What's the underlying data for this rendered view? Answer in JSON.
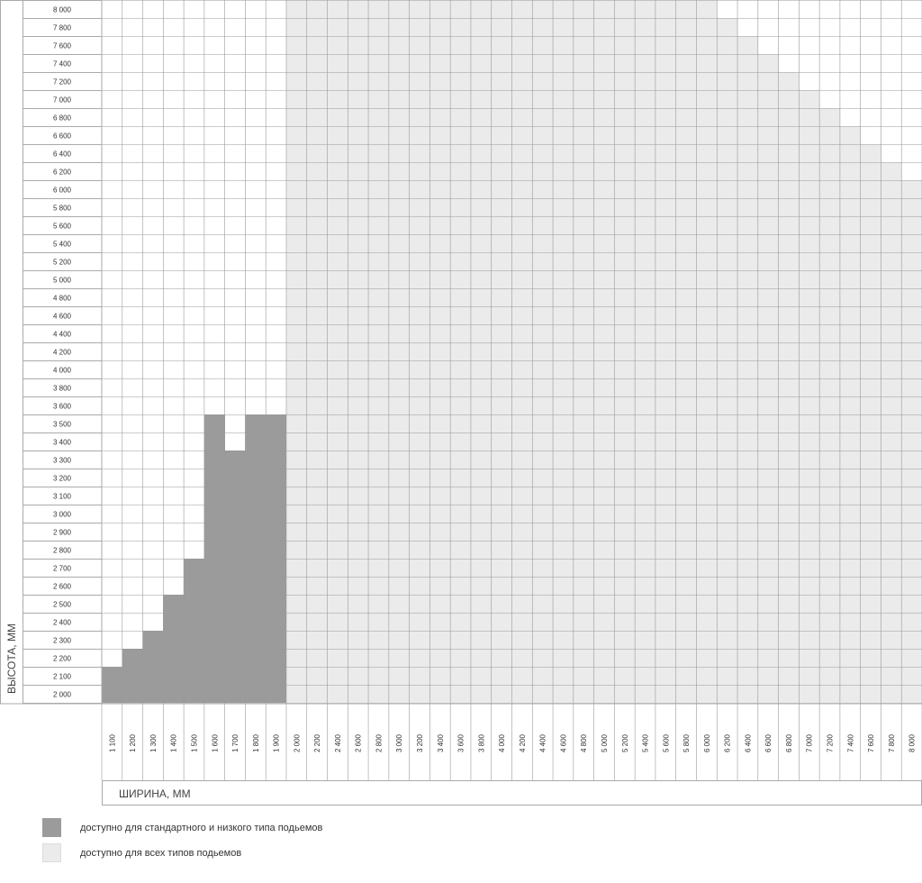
{
  "chart_data": {
    "type": "heatmap",
    "xlabel": "ШИРИНА, ММ",
    "ylabel": "ВЫСОТА, ММ",
    "x_tick_labels": [
      "1 100",
      "1 200",
      "1 300",
      "1 400",
      "1 500",
      "1 600",
      "1 700",
      "1 800",
      "1 900",
      "2 000",
      "2 200",
      "2 400",
      "2 600",
      "2 800",
      "3 000",
      "3 200",
      "3 400",
      "3 600",
      "3 800",
      "4 000",
      "4 200",
      "4 400",
      "4 600",
      "4 800",
      "5 000",
      "5 200",
      "5 400",
      "5 600",
      "5 800",
      "6 000",
      "6 200",
      "6 400",
      "6 600",
      "6 800",
      "7 000",
      "7 200",
      "7 400",
      "7 600",
      "7 800",
      "8 000"
    ],
    "x": [
      1100,
      1200,
      1300,
      1400,
      1500,
      1600,
      1700,
      1800,
      1900,
      2000,
      2200,
      2400,
      2600,
      2800,
      3000,
      3200,
      3400,
      3600,
      3800,
      4000,
      4200,
      4400,
      4600,
      4800,
      5000,
      5200,
      5400,
      5600,
      5800,
      6000,
      6200,
      6400,
      6600,
      6800,
      7000,
      7200,
      7400,
      7600,
      7800,
      8000
    ],
    "y_tick_labels": [
      "8 000",
      "7 800",
      "7 600",
      "7 400",
      "7 200",
      "7 000",
      "6 800",
      "6 600",
      "6 400",
      "6 200",
      "6 000",
      "5 800",
      "5 600",
      "5 400",
      "5 200",
      "5 000",
      "4 800",
      "4 600",
      "4 400",
      "4 200",
      "4 000",
      "3 800",
      "3 600",
      "3 500",
      "3 400",
      "3 300",
      "3 200",
      "3 100",
      "3 000",
      "2 900",
      "2 800",
      "2 700",
      "2 600",
      "2 500",
      "2 400",
      "2 300",
      "2 200",
      "2 100",
      "2 000"
    ],
    "y": [
      8000,
      7800,
      7600,
      7400,
      7200,
      7000,
      6800,
      6600,
      6400,
      6200,
      6000,
      5800,
      5600,
      5400,
      5200,
      5000,
      4800,
      4600,
      4400,
      4200,
      4000,
      3800,
      3600,
      3500,
      3400,
      3300,
      3200,
      3100,
      3000,
      2900,
      2800,
      2700,
      2600,
      2500,
      2400,
      2300,
      2200,
      2100,
      2000
    ],
    "series": [
      {
        "name": "доступно для стандартного и низкого типа подьемов",
        "color": "#9b9b9b",
        "max_height": [
          2100,
          2200,
          2300,
          2500,
          2700,
          3500,
          3300,
          3500,
          3500,
          null,
          null,
          null,
          null,
          null,
          null,
          null,
          null,
          null,
          null,
          null,
          null,
          null,
          null,
          null,
          null,
          null,
          null,
          null,
          null,
          null,
          null,
          null,
          null,
          null,
          null,
          null,
          null,
          null,
          null,
          null
        ]
      },
      {
        "name": "доступно для всех типов подьемов",
        "color": "#ebebeb",
        "max_height": [
          null,
          null,
          null,
          null,
          null,
          null,
          null,
          null,
          null,
          8000,
          8000,
          8000,
          8000,
          8000,
          8000,
          8000,
          8000,
          8000,
          8000,
          8000,
          8000,
          8000,
          8000,
          8000,
          8000,
          8000,
          8000,
          8000,
          8000,
          8000,
          7800,
          7600,
          7400,
          7200,
          7000,
          6800,
          6600,
          6400,
          6200,
          6000
        ]
      }
    ],
    "grid": true,
    "legend_placement": "bottom-left"
  }
}
